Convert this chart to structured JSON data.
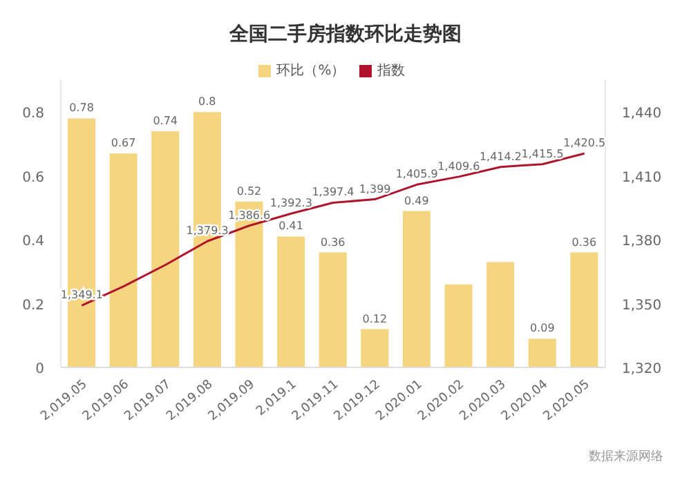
{
  "chart_data": {
    "type": "bar",
    "title": "全国二手房指数环比走势图",
    "categories": [
      "2,019.05",
      "2,019.06",
      "2,019.07",
      "2,019.08",
      "2,019.09",
      "2,019.1",
      "2,019.11",
      "2,019.12",
      "2,020.01",
      "2,020.02",
      "2,020.03",
      "2,020.04",
      "2,020.05"
    ],
    "series": [
      {
        "name": "环比（%）",
        "color": "#f5d57f",
        "values": [
          0.78,
          0.67,
          0.74,
          0.8,
          0.52,
          0.41,
          0.36,
          0.12,
          0.49,
          0.26,
          0.33,
          0.09,
          0.36
        ],
        "value_labels": [
          "0.78",
          "0.67",
          "0.74",
          "0.8",
          "0.52",
          "0.41",
          "0.36",
          "0.12",
          "0.49",
          null,
          null,
          "0.09",
          "0.36"
        ]
      },
      {
        "name": "指数",
        "type": "line",
        "axis": "y2",
        "color": "#b0142c",
        "values": [
          1349.1,
          1358.1,
          1368.2,
          1379.3,
          1386.6,
          1392.3,
          1397.4,
          1399,
          1405.9,
          1409.6,
          1414.2,
          1415.5,
          1420.5
        ],
        "value_labels": [
          "1,349.1",
          null,
          null,
          "1,379.3",
          "1,386.6",
          "1,392.3",
          "1,397.4",
          "1,399",
          "1,405.9",
          "1,409.6",
          "1,414.2",
          "1,415.5",
          "1,420.5"
        ]
      }
    ],
    "ylim": [
      0,
      0.9
    ],
    "yticks": [
      0,
      0.2,
      0.4,
      0.6,
      0.8
    ],
    "y2lim": [
      1320,
      1455
    ],
    "y2ticks": [
      {
        "value": 1320,
        "label": "1,320"
      },
      {
        "value": 1350,
        "label": "1,350"
      },
      {
        "value": 1380,
        "label": "1,380"
      },
      {
        "value": 1410,
        "label": "1,410"
      },
      {
        "value": 1440,
        "label": "1,440"
      }
    ],
    "legend": "top",
    "grid": false,
    "marker": "none",
    "annotations": [
      "数据来源网络"
    ]
  }
}
